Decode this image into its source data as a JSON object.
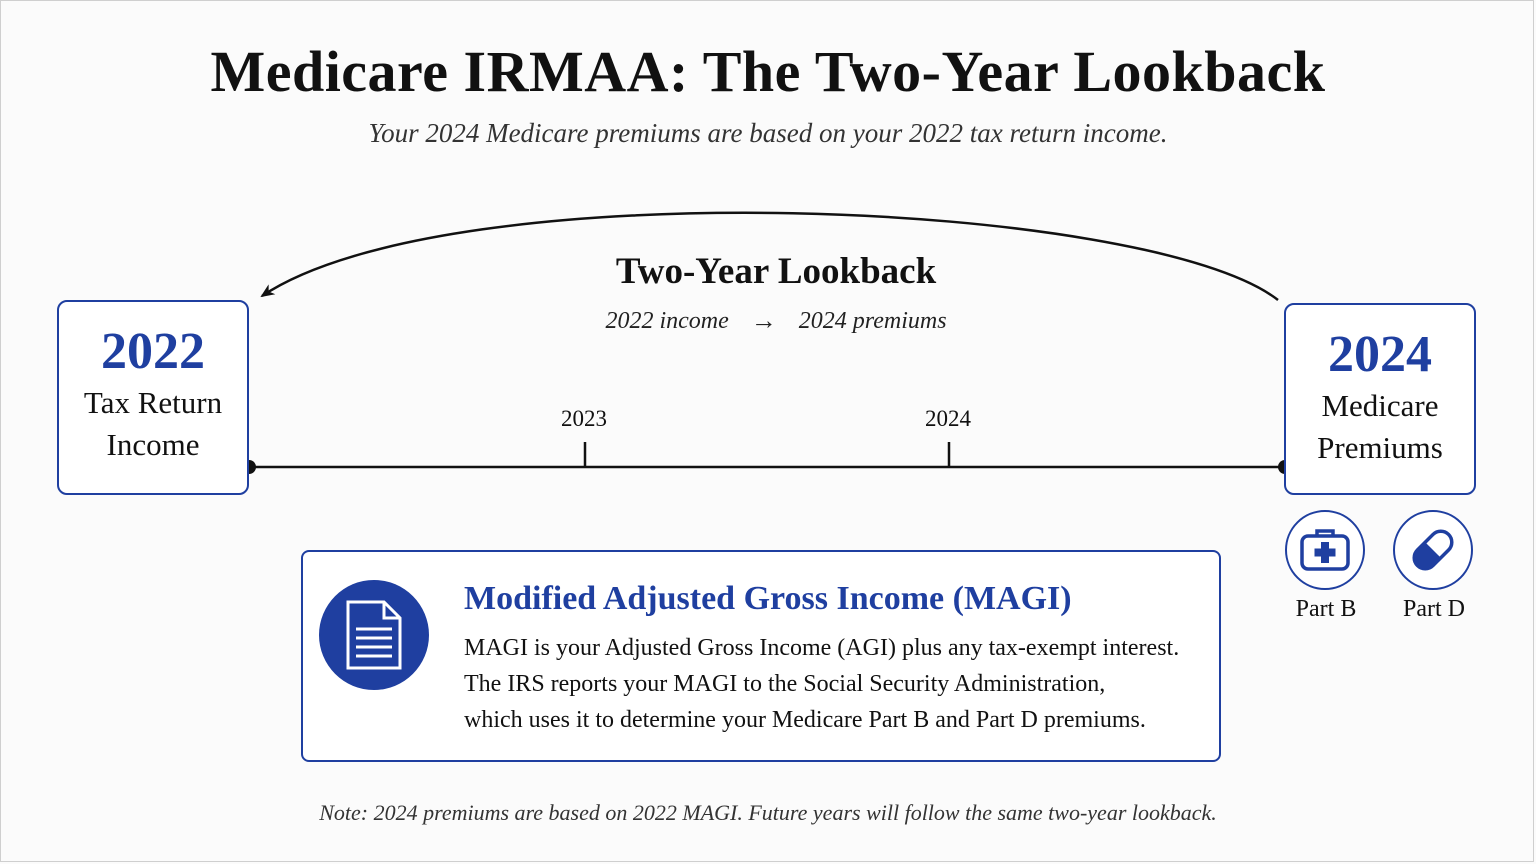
{
  "title": "Medicare IRMAA: The Two-Year Lookback",
  "subtitle": "Your 2024 Medicare premiums are based on your 2022 tax return income.",
  "lookback": {
    "title": "Two-Year Lookback",
    "from_text": "2022 income",
    "arrow": "→",
    "to_text": "2024 premiums"
  },
  "timeline": {
    "ticks": [
      "2023",
      "2024"
    ]
  },
  "start_box": {
    "year": "2022",
    "line1": "Tax Return",
    "line2": "Income"
  },
  "end_box": {
    "year": "2024",
    "line1": "Medicare",
    "line2": "Premiums"
  },
  "parts": [
    {
      "label": "Part B",
      "icon": "medical-kit-icon"
    },
    {
      "label": "Part D",
      "icon": "pill-icon"
    }
  ],
  "magi": {
    "icon": "document-icon",
    "title": "Modified Adjusted Gross Income (MAGI)",
    "lines": [
      "MAGI is your Adjusted Gross Income (AGI) plus any tax-exempt interest.",
      "The IRS reports your MAGI to the Social Security Administration,",
      "which uses it to determine your Medicare Part B and Part D premiums."
    ]
  },
  "note": "Note: 2024 premiums are based on 2022 MAGI. Future years will follow the same two-year lookback.",
  "colors": {
    "accent": "#1f3fa0",
    "text": "#111111"
  }
}
